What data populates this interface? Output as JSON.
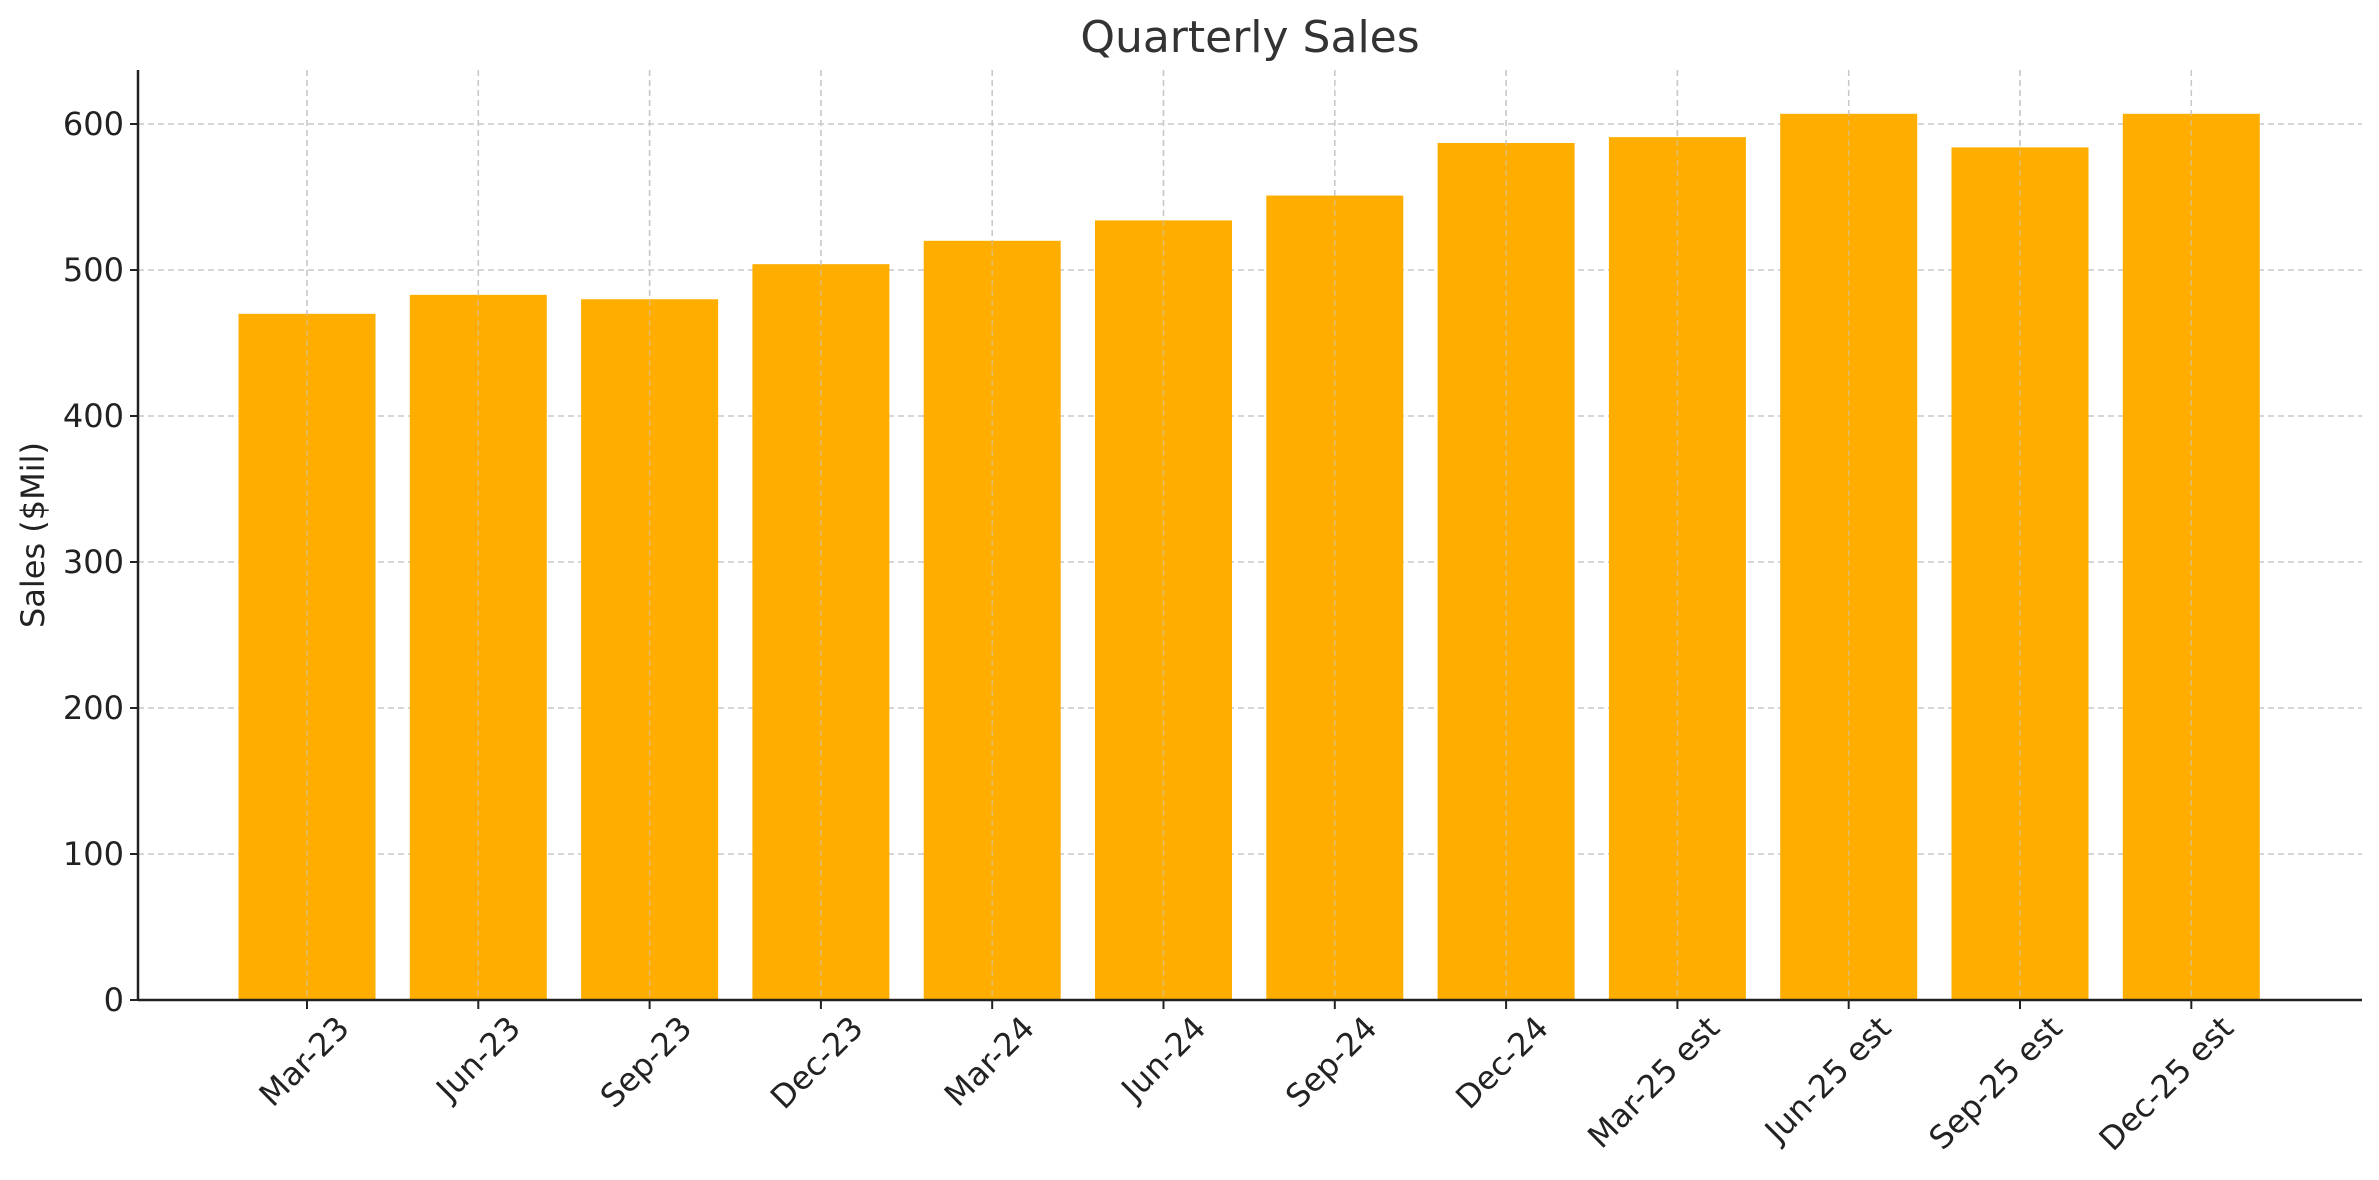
{
  "chart_data": {
    "type": "bar",
    "title": "Quarterly Sales",
    "xlabel": "",
    "ylabel": "Sales ($Mil)",
    "categories": [
      "Mar-23",
      "Jun-23",
      "Sep-23",
      "Dec-23",
      "Mar-24",
      "Jun-24",
      "Sep-24",
      "Dec-24",
      "Mar-25 est",
      "Jun-25 est",
      "Sep-25 est",
      "Dec-25 est"
    ],
    "values": [
      470,
      483,
      480,
      504,
      520,
      534,
      551,
      587,
      591,
      607,
      584,
      607
    ],
    "ylim": [
      0,
      637
    ],
    "yticks": [
      0,
      100,
      200,
      300,
      400,
      500,
      600
    ],
    "grid": true,
    "bar_color": "#FFAE00"
  }
}
